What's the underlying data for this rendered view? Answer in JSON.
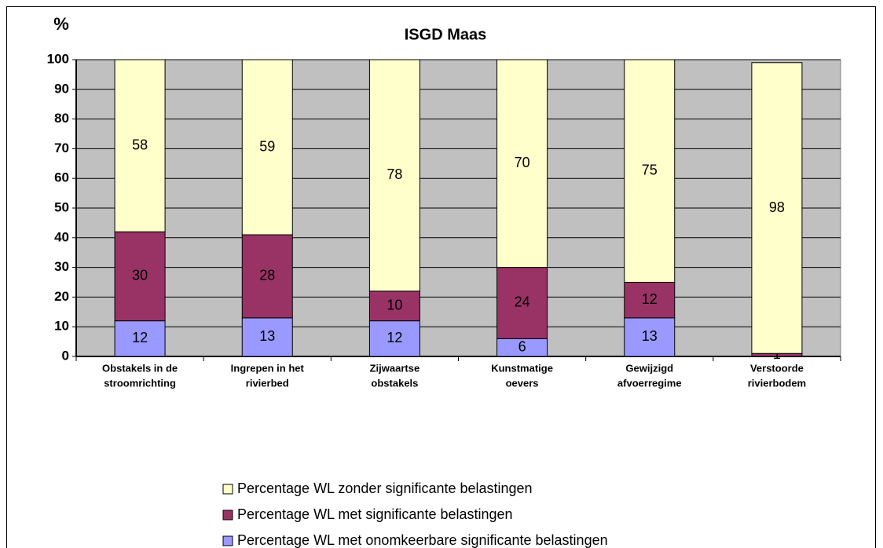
{
  "chart_data": {
    "type": "stacked_bar",
    "title": "ISGD Maas",
    "y_label": "%",
    "categories": [
      [
        "Obstakels in de",
        "stroomrichting"
      ],
      [
        "Ingrepen in het",
        "rivierbed"
      ],
      [
        "Zijwaartse",
        "obstakels"
      ],
      [
        "Kunstmatige",
        "oevers"
      ],
      [
        "Gewijzigd",
        "afvoerregime"
      ],
      [
        "Verstoorde",
        "rivierbodem"
      ]
    ],
    "series": [
      {
        "name": "Percentage WL met onomkeerbare significante belastingen",
        "color": "#9999ff",
        "values": [
          12,
          13,
          12,
          6,
          13,
          0
        ]
      },
      {
        "name": "Percentage WL met significante belastingen",
        "color": "#993366",
        "values": [
          30,
          28,
          10,
          24,
          12,
          1
        ]
      },
      {
        "name": "Percentage WL zonder significante belastingen",
        "color": "#ffffcc",
        "values": [
          58,
          59,
          78,
          70,
          75,
          98
        ]
      }
    ],
    "ylim": [
      0,
      100
    ],
    "yticks": [
      0,
      10,
      20,
      30,
      40,
      50,
      60,
      70,
      80,
      90,
      100
    ],
    "grid": true,
    "plot_background": "#c0c0c0"
  }
}
